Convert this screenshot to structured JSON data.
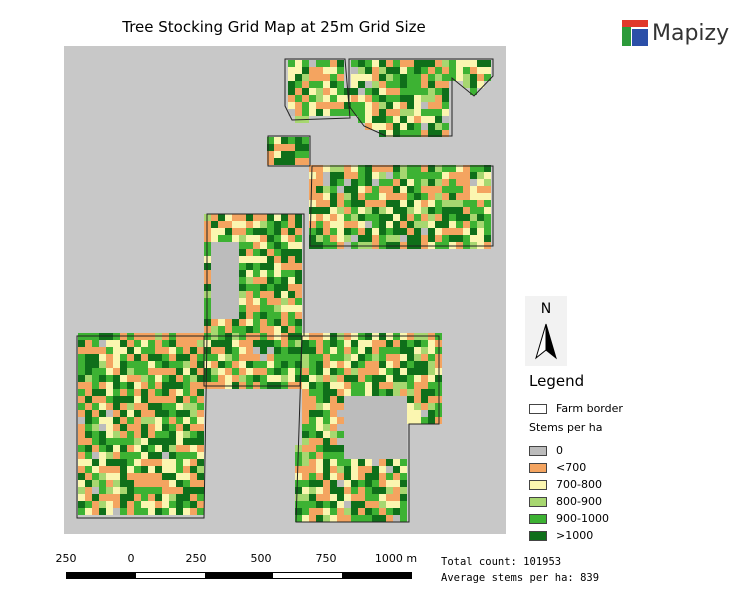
{
  "title": "Tree Stocking Grid Map at 25m Grid Size",
  "brand": {
    "name": "Mapizy",
    "colors": [
      "#e0382b",
      "#2c9a3a",
      "#2b4fa8"
    ]
  },
  "north_arrow": {
    "label": "N",
    "icon": "north-arrow-icon"
  },
  "legend": {
    "title": "Legend",
    "border_label": "Farm border",
    "subtitle": "Stems per ha",
    "classes": [
      {
        "label": "0",
        "color": "#bcbcbc"
      },
      {
        "label": "<700",
        "color": "#f4a460"
      },
      {
        "label": "700-800",
        "color": "#fbf6b0"
      },
      {
        "label": "800-900",
        "color": "#a7d770"
      },
      {
        "label": "900-1000",
        "color": "#3db233"
      },
      {
        "label": ">1000",
        "color": "#0f6f1a"
      }
    ]
  },
  "scale_bar": {
    "labels": [
      "250",
      "0",
      "250",
      "500",
      "750",
      "1000 m"
    ],
    "colors": [
      "#000000",
      "#ffffff"
    ]
  },
  "stats": {
    "total_count": "Total count: 101953",
    "average_stems": "Average stems per ha: 839"
  }
}
